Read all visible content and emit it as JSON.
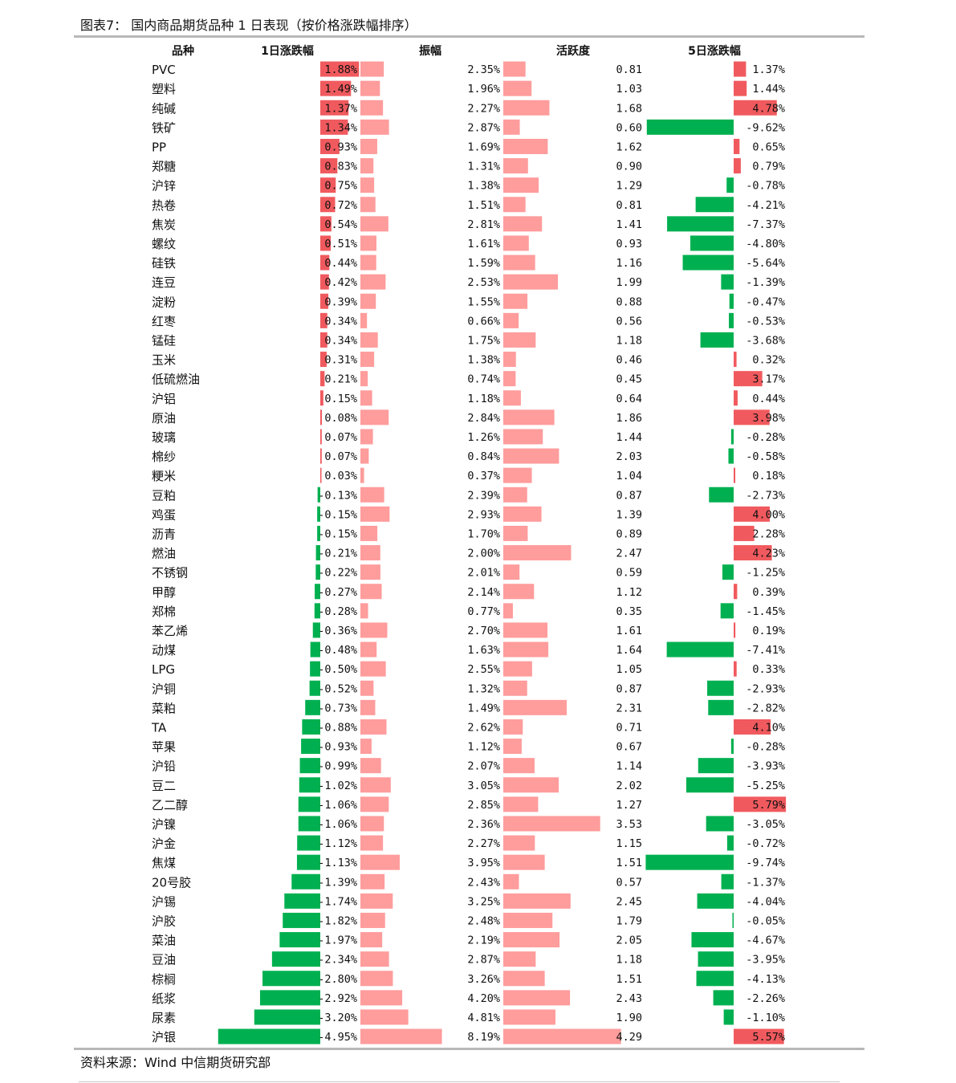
{
  "title": "图表7： 国内商品期货品种 1 日表现（按价格涨跌幅排序）",
  "footnote": "资料来源：Wind 中信期货研究部",
  "colors": {
    "positive": "#F05A5E",
    "negative": "#00B050",
    "neutral": "#FF9C9C",
    "rule": "#B8B8B8"
  },
  "chart_data": {
    "type": "table",
    "columns": [
      "品种",
      "1日涨跌幅",
      "振幅",
      "活跃度",
      "5日涨跌幅"
    ],
    "categories": [
      "PVC",
      "塑料",
      "纯碱",
      "铁矿",
      "PP",
      "郑糖",
      "沪锌",
      "热卷",
      "焦炭",
      "螺纹",
      "硅铁",
      "连豆",
      "淀粉",
      "红枣",
      "锰硅",
      "玉米",
      "低硫燃油",
      "沪铝",
      "原油",
      "玻璃",
      "棉纱",
      "粳米",
      "豆粕",
      "鸡蛋",
      "沥青",
      "燃油",
      "不锈钢",
      "甲醇",
      "郑棉",
      "苯乙烯",
      "动煤",
      "LPG",
      "沪铜",
      "菜粕",
      "TA",
      "苹果",
      "沪铅",
      "豆二",
      "乙二醇",
      "沪镍",
      "沪金",
      "焦煤",
      "20号胶",
      "沪锡",
      "沪胶",
      "菜油",
      "豆油",
      "棕榈",
      "纸浆",
      "尿素",
      "沪银"
    ],
    "series": [
      {
        "name": "1日涨跌幅",
        "values": [
          1.88,
          1.49,
          1.37,
          1.34,
          0.93,
          0.83,
          0.75,
          0.72,
          0.54,
          0.51,
          0.44,
          0.42,
          0.39,
          0.34,
          0.34,
          0.31,
          0.21,
          0.15,
          0.08,
          0.07,
          0.07,
          0.03,
          -0.13,
          -0.15,
          -0.15,
          -0.21,
          -0.22,
          -0.27,
          -0.28,
          -0.36,
          -0.48,
          -0.5,
          -0.52,
          -0.73,
          -0.88,
          -0.93,
          -0.99,
          -1.02,
          -1.06,
          -1.06,
          -1.12,
          -1.13,
          -1.39,
          -1.74,
          -1.82,
          -1.97,
          -2.34,
          -2.8,
          -2.92,
          -3.2,
          -4.95
        ],
        "labels": [
          "1.88%",
          "1.49%",
          "1.37%",
          "1.34%",
          "0.93%",
          "0.83%",
          "0.75%",
          "0.72%",
          "0.54%",
          "0.51%",
          "0.44%",
          "0.42%",
          "0.39%",
          "0.34%",
          "0.34%",
          "0.31%",
          "0.21%",
          "0.15%",
          "0.08%",
          "0.07%",
          "0.07%",
          "0.03%",
          "-0.13%",
          "-0.15%",
          "-0.15%",
          "-0.21%",
          "-0.22%",
          "-0.27%",
          "-0.28%",
          "-0.36%",
          "-0.48%",
          "-0.50%",
          "-0.52%",
          "-0.73%",
          "-0.88%",
          "-0.93%",
          "-0.99%",
          "-1.02%",
          "-1.06%",
          "-1.06%",
          "-1.12%",
          "-1.13%",
          "-1.39%",
          "-1.74%",
          "-1.82%",
          "-1.97%",
          "-2.34%",
          "-2.80%",
          "-2.92%",
          "-3.20%",
          "-4.95%"
        ]
      },
      {
        "name": "振幅",
        "values": [
          2.35,
          1.96,
          2.27,
          2.87,
          1.69,
          1.31,
          1.38,
          1.51,
          2.81,
          1.61,
          1.59,
          2.53,
          1.55,
          0.66,
          1.75,
          1.38,
          0.74,
          1.18,
          2.84,
          1.26,
          0.84,
          0.37,
          2.39,
          2.93,
          1.7,
          2.0,
          2.01,
          2.14,
          0.77,
          2.7,
          1.63,
          2.55,
          1.32,
          1.49,
          2.62,
          1.12,
          2.07,
          3.05,
          2.85,
          2.36,
          2.27,
          3.95,
          2.43,
          3.25,
          2.48,
          2.19,
          2.87,
          3.26,
          4.2,
          4.81,
          8.19
        ],
        "labels": [
          "2.35%",
          "1.96%",
          "2.27%",
          "2.87%",
          "1.69%",
          "1.31%",
          "1.38%",
          "1.51%",
          "2.81%",
          "1.61%",
          "1.59%",
          "2.53%",
          "1.55%",
          "0.66%",
          "1.75%",
          "1.38%",
          "0.74%",
          "1.18%",
          "2.84%",
          "1.26%",
          "0.84%",
          "0.37%",
          "2.39%",
          "2.93%",
          "1.70%",
          "2.00%",
          "2.01%",
          "2.14%",
          "0.77%",
          "2.70%",
          "1.63%",
          "2.55%",
          "1.32%",
          "1.49%",
          "2.62%",
          "1.12%",
          "2.07%",
          "3.05%",
          "2.85%",
          "2.36%",
          "2.27%",
          "3.95%",
          "2.43%",
          "3.25%",
          "2.48%",
          "2.19%",
          "2.87%",
          "3.26%",
          "4.20%",
          "4.81%",
          "8.19%"
        ]
      },
      {
        "name": "活跃度",
        "values": [
          0.81,
          1.03,
          1.68,
          0.6,
          1.62,
          0.9,
          1.29,
          0.81,
          1.41,
          0.93,
          1.16,
          1.99,
          0.88,
          0.56,
          1.18,
          0.46,
          0.45,
          0.64,
          1.86,
          1.44,
          2.03,
          1.04,
          0.87,
          1.39,
          0.89,
          2.47,
          0.59,
          1.12,
          0.35,
          1.61,
          1.64,
          1.05,
          0.87,
          2.31,
          0.71,
          0.67,
          1.14,
          2.02,
          1.27,
          3.53,
          1.15,
          1.51,
          0.57,
          2.45,
          1.79,
          2.05,
          1.18,
          1.51,
          2.43,
          1.9,
          4.29
        ],
        "labels": [
          "0.81",
          "1.03",
          "1.68",
          "0.60",
          "1.62",
          "0.90",
          "1.29",
          "0.81",
          "1.41",
          "0.93",
          "1.16",
          "1.99",
          "0.88",
          "0.56",
          "1.18",
          "0.46",
          "0.45",
          "0.64",
          "1.86",
          "1.44",
          "2.03",
          "1.04",
          "0.87",
          "1.39",
          "0.89",
          "2.47",
          "0.59",
          "1.12",
          "0.35",
          "1.61",
          "1.64",
          "1.05",
          "0.87",
          "2.31",
          "0.71",
          "0.67",
          "1.14",
          "2.02",
          "1.27",
          "3.53",
          "1.15",
          "1.51",
          "0.57",
          "2.45",
          "1.79",
          "2.05",
          "1.18",
          "1.51",
          "2.43",
          "1.90",
          "4.29"
        ]
      },
      {
        "name": "5日涨跌幅",
        "values": [
          1.37,
          1.44,
          4.78,
          -9.62,
          0.65,
          0.79,
          -0.78,
          -4.21,
          -7.37,
          -4.8,
          -5.64,
          -1.39,
          -0.47,
          -0.53,
          -3.68,
          0.32,
          3.17,
          0.44,
          3.98,
          -0.28,
          -0.58,
          0.18,
          -2.73,
          4.0,
          2.28,
          4.23,
          -1.25,
          0.39,
          -1.45,
          0.19,
          -7.41,
          0.33,
          -2.93,
          -2.82,
          4.1,
          -0.28,
          -3.93,
          -5.25,
          5.79,
          -3.05,
          -0.72,
          -9.74,
          -1.37,
          -4.04,
          -0.05,
          -4.67,
          -3.95,
          -4.13,
          -2.26,
          -1.1,
          5.57
        ],
        "labels": [
          "1.37%",
          "1.44%",
          "4.78%",
          "-9.62%",
          "0.65%",
          "0.79%",
          "-0.78%",
          "-4.21%",
          "-7.37%",
          "-4.80%",
          "-5.64%",
          "-1.39%",
          "-0.47%",
          "-0.53%",
          "-3.68%",
          "0.32%",
          "3.17%",
          "0.44%",
          "3.98%",
          "-0.28%",
          "-0.58%",
          "0.18%",
          "-2.73%",
          "4.00%",
          "2.28%",
          "4.23%",
          "-1.25%",
          "0.39%",
          "-1.45%",
          "0.19%",
          "-7.41%",
          "0.33%",
          "-2.93%",
          "-2.82%",
          "4.10%",
          "-0.28%",
          "-3.93%",
          "-5.25%",
          "5.79%",
          "-3.05%",
          "-0.72%",
          "-9.74%",
          "-1.37%",
          "-4.04%",
          "-0.05%",
          "-4.67%",
          "-3.95%",
          "-4.13%",
          "-2.26%",
          "-1.10%",
          "5.57%"
        ]
      }
    ]
  }
}
